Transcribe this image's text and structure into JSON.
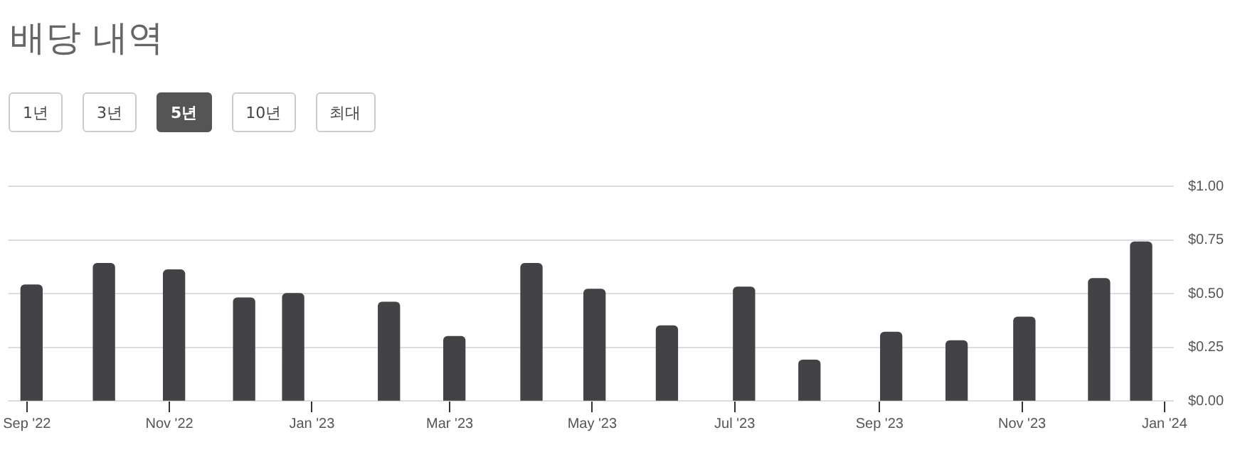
{
  "chart_data": {
    "type": "bar",
    "title": "배당 내역",
    "annotations": [
      "1년",
      "3년",
      "5년",
      "10년",
      "최대"
    ],
    "x": [
      "2022-09-03",
      "2022-10-04",
      "2022-11-03",
      "2022-12-03",
      "2022-12-24",
      "2023-02-03",
      "2023-03-03",
      "2023-04-05",
      "2023-05-02",
      "2023-06-02",
      "2023-07-05",
      "2023-08-02",
      "2023-09-06",
      "2023-10-04",
      "2023-11-02",
      "2023-12-04",
      "2023-12-22"
    ],
    "values": [
      0.54,
      0.64,
      0.61,
      0.48,
      0.5,
      0.46,
      0.3,
      0.64,
      0.52,
      0.35,
      0.53,
      0.19,
      0.32,
      0.28,
      0.39,
      0.57,
      0.74
    ],
    "color": "#434246",
    "xlim": [
      "2022-08-24",
      "2024-01-05"
    ],
    "xticks": [
      {
        "value": "2022-09",
        "label": "Sep '22"
      },
      {
        "value": "2022-11",
        "label": "Nov '22"
      },
      {
        "value": "2023-01",
        "label": "Jan '23"
      },
      {
        "value": "2023-03",
        "label": "Mar '23"
      },
      {
        "value": "2023-05",
        "label": "May '23"
      },
      {
        "value": "2023-07",
        "label": "Jul '23"
      },
      {
        "value": "2023-09",
        "label": "Sep '23"
      },
      {
        "value": "2023-11",
        "label": "Nov '23"
      },
      {
        "value": "2024-01",
        "label": "Jan '24"
      }
    ],
    "ylim": [
      0,
      1
    ],
    "yticks": [
      {
        "value": 0,
        "label": "$0.00"
      },
      {
        "value": 0.25,
        "label": "$0.25"
      },
      {
        "value": 0.5,
        "label": "$0.50"
      },
      {
        "value": 0.75,
        "label": "$0.75"
      },
      {
        "value": 1,
        "label": "$1.00"
      }
    ],
    "grid": "y",
    "legend": false
  }
}
